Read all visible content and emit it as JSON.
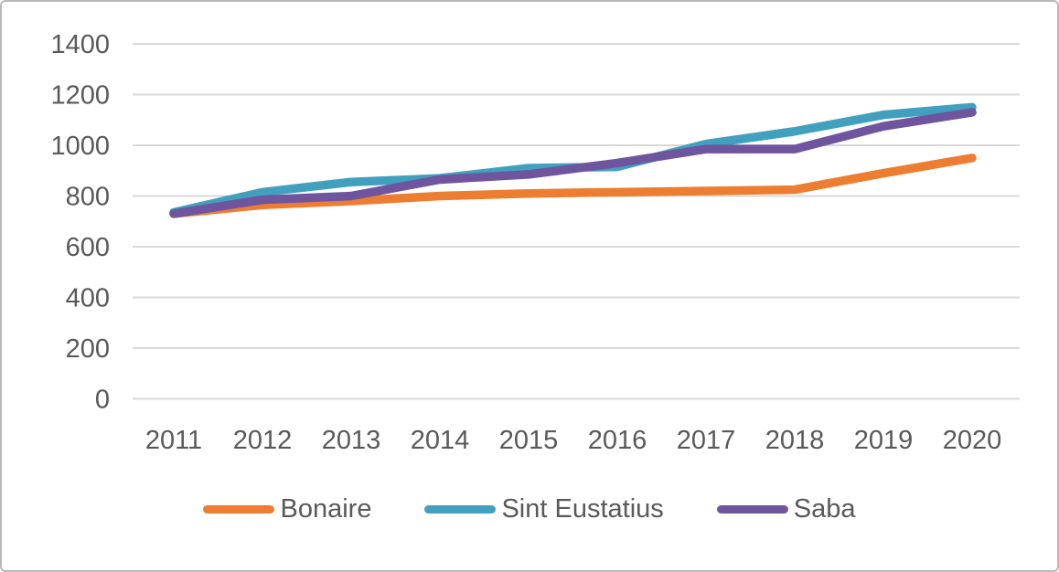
{
  "chart_data": {
    "type": "line",
    "title": "",
    "xlabel": "",
    "ylabel": "",
    "categories": [
      "2011",
      "2012",
      "2013",
      "2014",
      "2015",
      "2016",
      "2017",
      "2018",
      "2019",
      "2020"
    ],
    "series": [
      {
        "name": "Bonaire",
        "color": "#ED7D31",
        "values": [
          730,
          765,
          780,
          800,
          810,
          815,
          820,
          825,
          890,
          950
        ]
      },
      {
        "name": "Sint Eustatius",
        "color": "#42A0BF",
        "values": [
          735,
          815,
          855,
          870,
          910,
          915,
          1005,
          1055,
          1120,
          1150
        ]
      },
      {
        "name": "Saba",
        "color": "#6F549E",
        "values": [
          730,
          785,
          800,
          865,
          885,
          930,
          985,
          985,
          1075,
          1130
        ]
      }
    ],
    "ylim": [
      0,
      1400
    ],
    "y_ticks": [
      0,
      200,
      400,
      600,
      800,
      1000,
      1200,
      1400
    ],
    "grid": true,
    "legend_position": "bottom",
    "gridline_color": "#D9D9D9",
    "tick_label_color": "#595959"
  }
}
